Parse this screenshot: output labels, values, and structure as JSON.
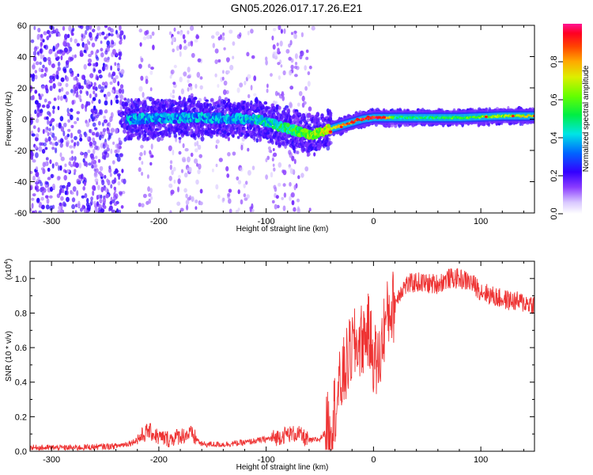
{
  "chart_data": [
    {
      "type": "heatmap",
      "title": "GN05.2026.017.17.26.E21",
      "xlabel": "Height of straight line (km)",
      "ylabel": "Frequency (Hz)",
      "xlim": [
        -320,
        150
      ],
      "ylim": [
        -60,
        60
      ],
      "xticks": [
        -300,
        -200,
        -100,
        0,
        100
      ],
      "yticks": [
        -60,
        -40,
        -20,
        0,
        20,
        40,
        60
      ],
      "colorbar": {
        "label": "Normalized spectral amplitude",
        "range": [
          0.0,
          1.0
        ],
        "ticks": [
          "0.0",
          "0.2",
          "0.4",
          "0.6",
          "0.8"
        ]
      },
      "ridge": {
        "x": [
          -230,
          -200,
          -170,
          -140,
          -110,
          -95,
          -80,
          -70,
          -60,
          -50,
          -40,
          -30,
          -20,
          -10,
          0,
          10,
          20,
          40,
          60,
          80,
          100,
          120,
          150
        ],
        "y": [
          0,
          0.5,
          1,
          0.5,
          0,
          -3,
          -6,
          -8,
          -10,
          -9,
          -6,
          -4,
          -2,
          0,
          1,
          1,
          1,
          1,
          1,
          1,
          1.5,
          2,
          2
        ],
        "amplitude": [
          0.35,
          0.35,
          0.35,
          0.35,
          0.4,
          0.45,
          0.5,
          0.55,
          0.6,
          0.65,
          0.75,
          0.8,
          0.85,
          0.9,
          0.95,
          0.9,
          0.5,
          0.5,
          0.5,
          0.55,
          0.6,
          0.65,
          0.75
        ]
      }
    },
    {
      "type": "line",
      "xlabel": "Height of straight line (km)",
      "ylabel": "SNR (10 * v/v)",
      "y_multiplier_label": "(x10",
      "y_multiplier_exp": "4",
      "xlim": [
        -320,
        150
      ],
      "ylim": [
        0,
        1.1
      ],
      "xticks": [
        -300,
        -200,
        -100,
        0,
        100
      ],
      "yticks": [
        "0.0",
        "0.2",
        "0.4",
        "0.6",
        "0.8",
        "1.0"
      ],
      "series": [
        {
          "color": "#ee3333",
          "x": [
            -320,
            -300,
            -280,
            -260,
            -240,
            -225,
            -215,
            -210,
            -200,
            -190,
            -180,
            -170,
            -160,
            -140,
            -120,
            -100,
            -90,
            -80,
            -70,
            -60,
            -50,
            -40,
            -35,
            -30,
            -25,
            -20,
            -15,
            -10,
            -5,
            0,
            5,
            10,
            15,
            20,
            25,
            30,
            40,
            50,
            60,
            70,
            80,
            90,
            100,
            110,
            120,
            130,
            140,
            150
          ],
          "y": [
            0.02,
            0.02,
            0.02,
            0.025,
            0.03,
            0.05,
            0.09,
            0.12,
            0.08,
            0.07,
            0.09,
            0.1,
            0.04,
            0.04,
            0.05,
            0.07,
            0.08,
            0.1,
            0.1,
            0.06,
            0.07,
            0.15,
            0.28,
            0.4,
            0.5,
            0.6,
            0.62,
            0.65,
            0.7,
            0.55,
            0.5,
            0.72,
            0.82,
            0.85,
            0.93,
            0.96,
            0.98,
            0.97,
            0.97,
            1.0,
            1.0,
            0.98,
            0.93,
            0.9,
            0.88,
            0.87,
            0.86,
            0.85
          ]
        }
      ]
    }
  ]
}
